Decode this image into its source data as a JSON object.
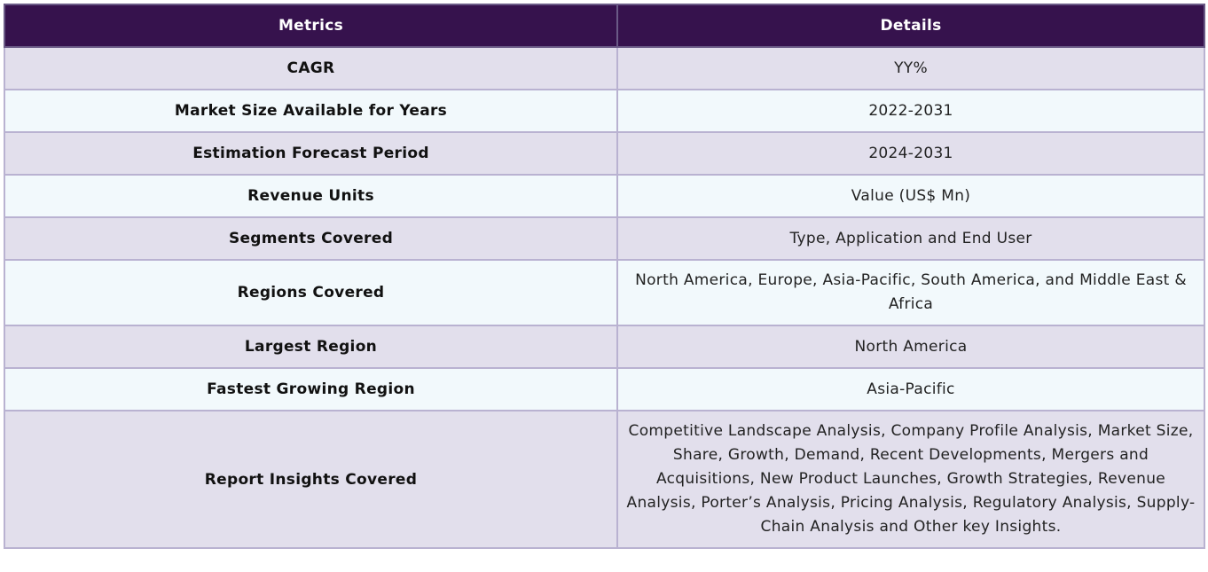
{
  "table": {
    "headers": [
      "Metrics",
      "Details"
    ],
    "rows": [
      {
        "metric": "CAGR",
        "detail": "YY%"
      },
      {
        "metric": "Market Size Available for Years",
        "detail": "2022-2031"
      },
      {
        "metric": "Estimation Forecast Period",
        "detail": "2024-2031"
      },
      {
        "metric": "Revenue Units",
        "detail": "Value (US$ Mn)"
      },
      {
        "metric": "Segments Covered",
        "detail": "Type, Application and End User"
      },
      {
        "metric": "Regions Covered",
        "detail": "North America, Europe, Asia-Pacific, South America, and Middle East & Africa"
      },
      {
        "metric": "Largest Region",
        "detail": "North America"
      },
      {
        "metric": "Fastest Growing Region",
        "detail": "Asia-Pacific"
      },
      {
        "metric": "Report Insights Covered",
        "detail": "Competitive Landscape Analysis, Company Profile Analysis, Market Size, Share, Growth, Demand, Recent Developments, Mergers and Acquisitions, New Product Launches, Growth Strategies, Revenue Analysis, Porter’s Analysis, Pricing Analysis, Regulatory Analysis, Supply-Chain Analysis and Other key Insights."
      }
    ]
  },
  "colors": {
    "header_bg": "#36124d",
    "row_odd_bg": "#e2dfec",
    "row_even_bg": "#f2f9fc",
    "border": "#b9b2d1"
  }
}
